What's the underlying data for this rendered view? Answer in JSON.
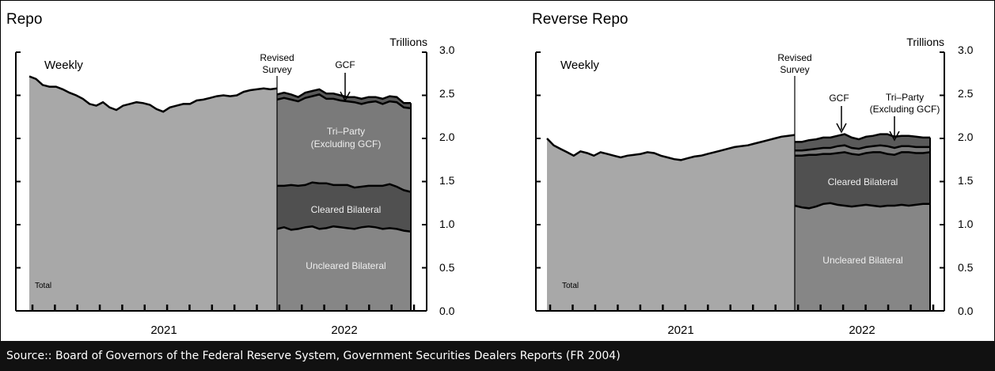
{
  "footer": {
    "source": "Source:: Board of Governors of the Federal Reserve System, Government Securities Dealers Reports (FR 2004)"
  },
  "colors": {
    "total": "#a8a8a8",
    "uncleared_bilateral": "#868686",
    "cleared_bilateral": "#505050",
    "tri_party": "#7a7a7a",
    "gcf": "#5a5a5a",
    "outline": "#000000",
    "footer_bg": "#111111"
  },
  "chart_data": [
    {
      "type": "area",
      "title": "Repo",
      "frequency_label": "Weekly",
      "units_label": "Trillions",
      "ylim": [
        0,
        3.0
      ],
      "yticks": [
        "0.0",
        "0.5",
        "1.0",
        "1.5",
        "2.0",
        "2.5",
        "3.0"
      ],
      "xtick_labels": [
        "2021",
        "2022"
      ],
      "annotations": [
        "Revised Survey",
        "GCF"
      ],
      "series": [
        {
          "name": "Total",
          "period": "2021",
          "values": [
            2.72,
            2.69,
            2.62,
            2.6,
            2.6,
            2.57,
            2.53,
            2.5,
            2.46,
            2.4,
            2.38,
            2.42,
            2.36,
            2.33,
            2.38,
            2.4,
            2.42,
            2.41,
            2.39,
            2.34,
            2.31,
            2.36,
            2.38,
            2.4,
            2.4,
            2.44,
            2.45,
            2.47,
            2.49,
            2.5,
            2.49,
            2.5,
            2.54,
            2.56,
            2.57,
            2.58,
            2.57,
            2.58
          ]
        },
        {
          "name": "Uncleared Bilateral",
          "period": "2022",
          "values": [
            0.95,
            0.97,
            0.94,
            0.95,
            0.97,
            0.98,
            0.95,
            0.96,
            0.98,
            0.97,
            0.96,
            0.95,
            0.97,
            0.98,
            0.97,
            0.95,
            0.96,
            0.95,
            0.93,
            0.92
          ]
        },
        {
          "name": "Cleared Bilateral",
          "period": "2022",
          "values": [
            0.5,
            0.48,
            0.52,
            0.5,
            0.49,
            0.51,
            0.53,
            0.52,
            0.48,
            0.49,
            0.5,
            0.48,
            0.47,
            0.47,
            0.48,
            0.5,
            0.51,
            0.49,
            0.47,
            0.46
          ]
        },
        {
          "name": "Tri-Party (Excluding GCF)",
          "period": "2022",
          "values": [
            1.0,
            1.02,
            0.99,
            0.98,
            1.01,
            1.0,
            1.03,
            0.98,
            1.0,
            0.98,
            0.97,
            0.99,
            0.96,
            0.97,
            0.98,
            0.95,
            0.96,
            0.98,
            0.96,
            0.97
          ]
        },
        {
          "name": "GCF",
          "period": "2022",
          "values": [
            0.06,
            0.06,
            0.06,
            0.05,
            0.06,
            0.06,
            0.06,
            0.06,
            0.06,
            0.06,
            0.05,
            0.06,
            0.06,
            0.06,
            0.05,
            0.06,
            0.06,
            0.06,
            0.05,
            0.06
          ]
        }
      ],
      "region_labels": {
        "total": "Total",
        "uncleared": "Uncleared Bilateral",
        "cleared": "Cleared Bilateral",
        "triparty_line1": "Tri–Party",
        "triparty_line2": "(Excluding GCF)",
        "gcf": "GCF",
        "revised_line1": "Revised",
        "revised_line2": "Survey"
      }
    },
    {
      "type": "area",
      "title": "Reverse Repo",
      "frequency_label": "Weekly",
      "units_label": "Trillions",
      "ylim": [
        0,
        3.0
      ],
      "yticks": [
        "0.0",
        "0.5",
        "1.0",
        "1.5",
        "2.0",
        "2.5",
        "3.0"
      ],
      "xtick_labels": [
        "2021",
        "2022"
      ],
      "annotations": [
        "Revised Survey",
        "GCF",
        "Tri-Party (Excluding GCF)"
      ],
      "series": [
        {
          "name": "Total",
          "period": "2021",
          "values": [
            2.0,
            1.92,
            1.88,
            1.84,
            1.8,
            1.85,
            1.83,
            1.8,
            1.84,
            1.82,
            1.8,
            1.78,
            1.8,
            1.81,
            1.82,
            1.84,
            1.83,
            1.8,
            1.78,
            1.76,
            1.75,
            1.77,
            1.79,
            1.8,
            1.82,
            1.84,
            1.86,
            1.88,
            1.9,
            1.91,
            1.92,
            1.94,
            1.96,
            1.98,
            2.0,
            2.02,
            2.03,
            2.04
          ]
        },
        {
          "name": "Uncleared Bilateral",
          "period": "2022",
          "values": [
            1.22,
            1.2,
            1.19,
            1.21,
            1.24,
            1.25,
            1.23,
            1.22,
            1.21,
            1.22,
            1.23,
            1.22,
            1.21,
            1.22,
            1.22,
            1.23,
            1.22,
            1.23,
            1.24,
            1.24
          ]
        },
        {
          "name": "Cleared Bilateral",
          "period": "2022",
          "values": [
            0.58,
            0.6,
            0.62,
            0.6,
            0.58,
            0.57,
            0.6,
            0.62,
            0.61,
            0.59,
            0.6,
            0.62,
            0.63,
            0.6,
            0.59,
            0.61,
            0.62,
            0.6,
            0.59,
            0.6
          ]
        },
        {
          "name": "Tri-Party (Excluding GCF)",
          "period": "2022",
          "values": [
            0.06,
            0.06,
            0.06,
            0.07,
            0.07,
            0.07,
            0.08,
            0.08,
            0.07,
            0.07,
            0.07,
            0.07,
            0.08,
            0.09,
            0.08,
            0.07,
            0.07,
            0.07,
            0.07,
            0.06
          ]
        },
        {
          "name": "GCF",
          "period": "2022",
          "values": [
            0.1,
            0.1,
            0.11,
            0.11,
            0.12,
            0.12,
            0.12,
            0.13,
            0.12,
            0.11,
            0.12,
            0.12,
            0.13,
            0.14,
            0.13,
            0.12,
            0.12,
            0.12,
            0.11,
            0.11
          ]
        }
      ],
      "region_labels": {
        "total": "Total",
        "uncleared": "Uncleared Bilateral",
        "cleared": "Cleared Bilateral",
        "triparty_line1": "Tri–Party",
        "triparty_line2": "(Excluding GCF)",
        "gcf": "GCF",
        "revised_line1": "Revised",
        "revised_line2": "Survey"
      }
    }
  ]
}
